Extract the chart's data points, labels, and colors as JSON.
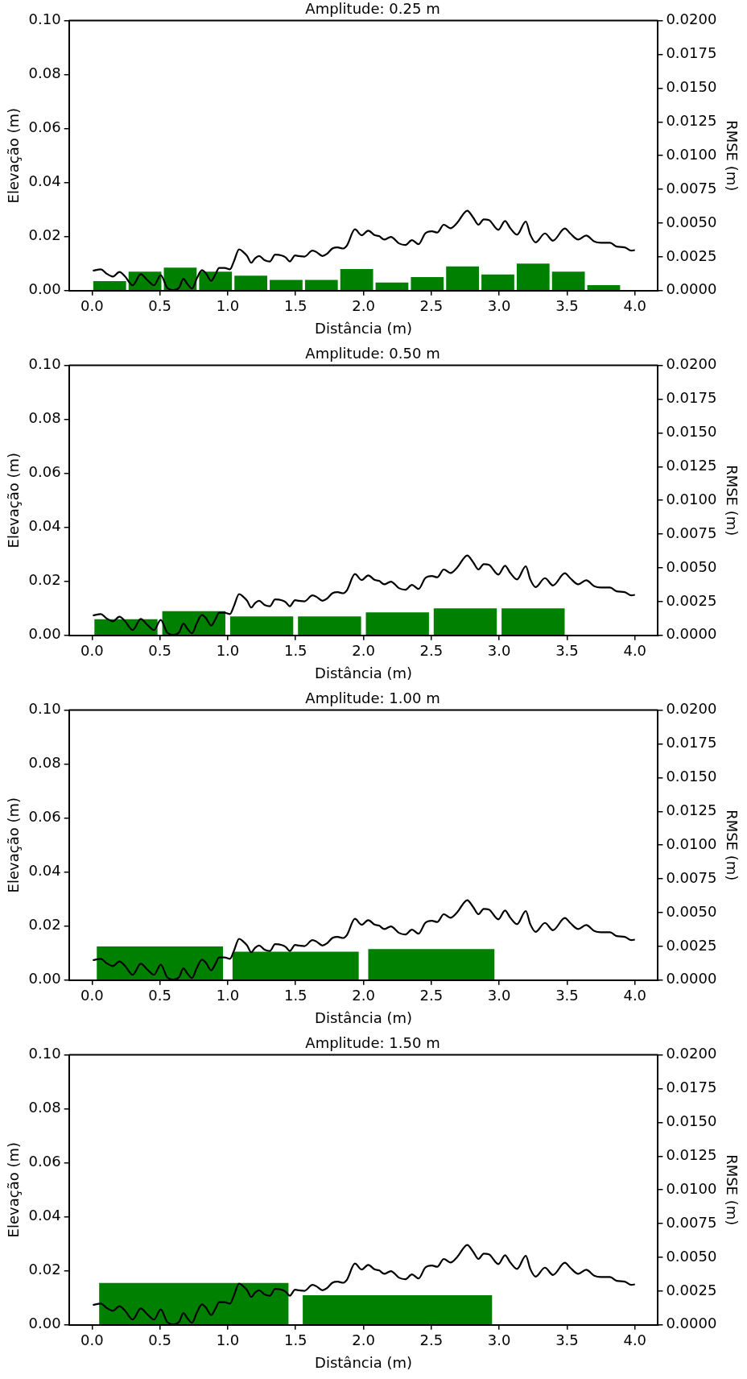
{
  "chart_data": [
    {
      "type": "line",
      "title": "Amplitude: 0.25 m",
      "xlabel": "Distância (m)",
      "ylabel": "Elevação (m)",
      "y2label": "RMSE (m)",
      "grid": false,
      "legend": false,
      "xlim": [
        -0.17,
        4.17
      ],
      "xticks": [
        {
          "value": 0,
          "label": "0.0"
        },
        {
          "value": 0.5,
          "label": "0.5"
        },
        {
          "value": 1,
          "label": "1.0"
        },
        {
          "value": 1.5,
          "label": "1.5"
        },
        {
          "value": 2,
          "label": "2.0"
        },
        {
          "value": 2.5,
          "label": "2.5"
        },
        {
          "value": 3,
          "label": "3.0"
        },
        {
          "value": 3.5,
          "label": "3.5"
        },
        {
          "value": 4,
          "label": "4.0"
        }
      ],
      "ylim": [
        0,
        0.1
      ],
      "yticks": [
        {
          "value": 0,
          "label": "0.00"
        },
        {
          "value": 0.02,
          "label": "0.02"
        },
        {
          "value": 0.04,
          "label": "0.04"
        },
        {
          "value": 0.06,
          "label": "0.06"
        },
        {
          "value": 0.08,
          "label": "0.08"
        },
        {
          "value": 0.1,
          "label": "0.10"
        }
      ],
      "y2lim": [
        0,
        0.02
      ],
      "y2ticks": [
        {
          "value": 0,
          "label": "0.0000"
        },
        {
          "value": 0.0025,
          "label": "0.0025"
        },
        {
          "value": 0.005,
          "label": "0.0050"
        },
        {
          "value": 0.0075,
          "label": "0.0075"
        },
        {
          "value": 0.01,
          "label": "0.0100"
        },
        {
          "value": 0.0125,
          "label": "0.0125"
        },
        {
          "value": 0.015,
          "label": "0.0150"
        },
        {
          "value": 0.0175,
          "label": "0.0175"
        },
        {
          "value": 0.02,
          "label": "0.0200"
        }
      ],
      "series": [
        {
          "type": "histogram",
          "axis": "y2",
          "color": "#008000",
          "bins": [
            0,
            0.26,
            0.52,
            0.78,
            1.04,
            1.3,
            1.56,
            1.82,
            2.08,
            2.34,
            2.6,
            2.86,
            3.12,
            3.38,
            3.64,
            3.9
          ],
          "values": [
            0.0007,
            0.0014,
            0.0017,
            0.0014,
            0.0011,
            0.0008,
            0.0008,
            0.0016,
            0.0006,
            0.001,
            0.0018,
            0.0012,
            0.002,
            0.0014,
            0.0004
          ]
        },
        {
          "color": "#000000",
          "x": [
            0.006,
            0.065,
            0.104,
            0.153,
            0.202,
            0.241,
            0.3,
            0.359,
            0.408,
            0.457,
            0.506,
            0.555,
            0.604,
            0.643,
            0.673,
            0.702,
            0.737,
            0.771,
            0.81,
            0.839,
            0.878,
            0.908,
            0.937,
            0.976,
            1.016,
            1.045,
            1.084,
            1.114,
            1.143,
            1.173,
            1.202,
            1.231,
            1.271,
            1.31,
            1.349,
            1.398,
            1.427,
            1.457,
            1.496,
            1.525,
            1.565,
            1.624,
            1.653,
            1.698,
            1.731,
            1.771,
            1.81,
            1.849,
            1.878,
            1.937,
            1.986,
            2.035,
            2.084,
            2.114,
            2.153,
            2.202,
            2.261,
            2.308,
            2.357,
            2.406,
            2.455,
            2.504,
            2.543,
            2.592,
            2.641,
            2.69,
            2.765,
            2.808,
            2.847,
            2.886,
            2.925,
            2.994,
            3.043,
            3.082,
            3.131,
            3.196,
            3.229,
            3.268,
            3.337,
            3.396,
            3.484,
            3.523,
            3.582,
            3.641,
            3.7,
            3.749,
            3.817,
            3.866,
            3.925,
            3.974,
            4.0
          ],
          "values": [
            0.0074,
            0.0079,
            0.0064,
            0.0052,
            0.0069,
            0.0054,
            0.002,
            0.0061,
            0.0039,
            0.002,
            0.0057,
            0.001,
            0.0002,
            0.0012,
            0.0044,
            0.0025,
            0.0008,
            0.0044,
            0.0076,
            0.0064,
            0.0036,
            0.0059,
            0.0084,
            0.0084,
            0.0079,
            0.0108,
            0.0153,
            0.0143,
            0.0128,
            0.0103,
            0.012,
            0.0128,
            0.0113,
            0.0108,
            0.0133,
            0.013,
            0.0123,
            0.0108,
            0.013,
            0.0128,
            0.0126,
            0.0148,
            0.0143,
            0.0128,
            0.0136,
            0.0156,
            0.016,
            0.0156,
            0.0167,
            0.0227,
            0.0205,
            0.0222,
            0.0205,
            0.0202,
            0.0189,
            0.0199,
            0.0175,
            0.0169,
            0.0187,
            0.0172,
            0.0212,
            0.022,
            0.0215,
            0.0244,
            0.0231,
            0.0251,
            0.0296,
            0.0271,
            0.0244,
            0.0264,
            0.0261,
            0.0225,
            0.0258,
            0.0231,
            0.0207,
            0.0256,
            0.0207,
            0.0179,
            0.0212,
            0.0185,
            0.023,
            0.0212,
            0.0189,
            0.0204,
            0.0182,
            0.0177,
            0.0177,
            0.0163,
            0.016,
            0.0148,
            0.015
          ]
        }
      ]
    },
    {
      "type": "line",
      "title": "Amplitude: 0.50 m",
      "xlabel": "Distância (m)",
      "ylabel": "Elevação (m)",
      "y2label": "RMSE (m)",
      "grid": false,
      "legend": false,
      "xlim": [
        -0.17,
        4.17
      ],
      "xticks": [
        {
          "value": 0,
          "label": "0.0"
        },
        {
          "value": 0.5,
          "label": "0.5"
        },
        {
          "value": 1,
          "label": "1.0"
        },
        {
          "value": 1.5,
          "label": "1.5"
        },
        {
          "value": 2,
          "label": "2.0"
        },
        {
          "value": 2.5,
          "label": "2.5"
        },
        {
          "value": 3,
          "label": "3.0"
        },
        {
          "value": 3.5,
          "label": "3.5"
        },
        {
          "value": 4,
          "label": "4.0"
        }
      ],
      "ylim": [
        0,
        0.1
      ],
      "yticks": [
        {
          "value": 0,
          "label": "0.00"
        },
        {
          "value": 0.02,
          "label": "0.02"
        },
        {
          "value": 0.04,
          "label": "0.04"
        },
        {
          "value": 0.06,
          "label": "0.06"
        },
        {
          "value": 0.08,
          "label": "0.08"
        },
        {
          "value": 0.1,
          "label": "0.10"
        }
      ],
      "y2lim": [
        0,
        0.02
      ],
      "y2ticks": [
        {
          "value": 0,
          "label": "0.0000"
        },
        {
          "value": 0.0025,
          "label": "0.0025"
        },
        {
          "value": 0.005,
          "label": "0.0050"
        },
        {
          "value": 0.0075,
          "label": "0.0075"
        },
        {
          "value": 0.01,
          "label": "0.0100"
        },
        {
          "value": 0.0125,
          "label": "0.0125"
        },
        {
          "value": 0.015,
          "label": "0.0150"
        },
        {
          "value": 0.0175,
          "label": "0.0175"
        },
        {
          "value": 0.02,
          "label": "0.0200"
        }
      ],
      "series": [
        {
          "type": "histogram",
          "axis": "y2",
          "color": "#008000",
          "bins": [
            0,
            0.5,
            1,
            1.5,
            2,
            2.5,
            3,
            3.5
          ],
          "values": [
            0.0012,
            0.0018,
            0.0014,
            0.0014,
            0.0017,
            0.002,
            0.002
          ]
        },
        {
          "color": "#000000",
          "x": [
            0.006,
            0.065,
            0.104,
            0.153,
            0.202,
            0.241,
            0.3,
            0.359,
            0.408,
            0.457,
            0.506,
            0.555,
            0.604,
            0.643,
            0.673,
            0.702,
            0.737,
            0.771,
            0.81,
            0.839,
            0.878,
            0.908,
            0.937,
            0.976,
            1.016,
            1.045,
            1.084,
            1.114,
            1.143,
            1.173,
            1.202,
            1.231,
            1.271,
            1.31,
            1.349,
            1.398,
            1.427,
            1.457,
            1.496,
            1.525,
            1.565,
            1.624,
            1.653,
            1.698,
            1.731,
            1.771,
            1.81,
            1.849,
            1.878,
            1.937,
            1.986,
            2.035,
            2.084,
            2.114,
            2.153,
            2.202,
            2.261,
            2.308,
            2.357,
            2.406,
            2.455,
            2.504,
            2.543,
            2.592,
            2.641,
            2.69,
            2.765,
            2.808,
            2.847,
            2.886,
            2.925,
            2.994,
            3.043,
            3.082,
            3.131,
            3.196,
            3.229,
            3.268,
            3.337,
            3.396,
            3.484,
            3.523,
            3.582,
            3.641,
            3.7,
            3.749,
            3.817,
            3.866,
            3.925,
            3.974,
            4.0
          ],
          "values": [
            0.0074,
            0.0079,
            0.0064,
            0.0052,
            0.0069,
            0.0054,
            0.002,
            0.0061,
            0.0039,
            0.002,
            0.0057,
            0.001,
            0.0002,
            0.0012,
            0.0044,
            0.0025,
            0.0008,
            0.0044,
            0.0076,
            0.0064,
            0.0036,
            0.0059,
            0.0084,
            0.0084,
            0.0079,
            0.0108,
            0.0153,
            0.0143,
            0.0128,
            0.0103,
            0.012,
            0.0128,
            0.0113,
            0.0108,
            0.0133,
            0.013,
            0.0123,
            0.0108,
            0.013,
            0.0128,
            0.0126,
            0.0148,
            0.0143,
            0.0128,
            0.0136,
            0.0156,
            0.016,
            0.0156,
            0.0167,
            0.0227,
            0.0205,
            0.0222,
            0.0205,
            0.0202,
            0.0189,
            0.0199,
            0.0175,
            0.0169,
            0.0187,
            0.0172,
            0.0212,
            0.022,
            0.0215,
            0.0244,
            0.0231,
            0.0251,
            0.0296,
            0.0271,
            0.0244,
            0.0264,
            0.0261,
            0.0225,
            0.0258,
            0.0231,
            0.0207,
            0.0256,
            0.0207,
            0.0179,
            0.0212,
            0.0185,
            0.023,
            0.0212,
            0.0189,
            0.0204,
            0.0182,
            0.0177,
            0.0177,
            0.0163,
            0.016,
            0.0148,
            0.015
          ]
        }
      ]
    },
    {
      "type": "line",
      "title": "Amplitude: 1.00 m",
      "xlabel": "Distância (m)",
      "ylabel": "Elevação (m)",
      "y2label": "RMSE (m)",
      "grid": false,
      "legend": false,
      "xlim": [
        -0.17,
        4.17
      ],
      "xticks": [
        {
          "value": 0,
          "label": "0.0"
        },
        {
          "value": 0.5,
          "label": "0.5"
        },
        {
          "value": 1,
          "label": "1.0"
        },
        {
          "value": 1.5,
          "label": "1.5"
        },
        {
          "value": 2,
          "label": "2.0"
        },
        {
          "value": 2.5,
          "label": "2.5"
        },
        {
          "value": 3,
          "label": "3.0"
        },
        {
          "value": 3.5,
          "label": "3.5"
        },
        {
          "value": 4,
          "label": "4.0"
        }
      ],
      "ylim": [
        0,
        0.1
      ],
      "yticks": [
        {
          "value": 0,
          "label": "0.00"
        },
        {
          "value": 0.02,
          "label": "0.02"
        },
        {
          "value": 0.04,
          "label": "0.04"
        },
        {
          "value": 0.06,
          "label": "0.06"
        },
        {
          "value": 0.08,
          "label": "0.08"
        },
        {
          "value": 0.1,
          "label": "0.10"
        }
      ],
      "y2lim": [
        0,
        0.02
      ],
      "y2ticks": [
        {
          "value": 0,
          "label": "0.0000"
        },
        {
          "value": 0.0025,
          "label": "0.0025"
        },
        {
          "value": 0.005,
          "label": "0.0050"
        },
        {
          "value": 0.0075,
          "label": "0.0075"
        },
        {
          "value": 0.01,
          "label": "0.0100"
        },
        {
          "value": 0.0125,
          "label": "0.0125"
        },
        {
          "value": 0.015,
          "label": "0.0150"
        },
        {
          "value": 0.0175,
          "label": "0.0175"
        },
        {
          "value": 0.02,
          "label": "0.0200"
        }
      ],
      "series": [
        {
          "type": "histogram",
          "axis": "y2",
          "color": "#008000",
          "bins": [
            0,
            1,
            2,
            3
          ],
          "values": [
            0.0025,
            0.0021,
            0.0023
          ]
        },
        {
          "color": "#000000",
          "x": [
            0.006,
            0.065,
            0.104,
            0.153,
            0.202,
            0.241,
            0.3,
            0.359,
            0.408,
            0.457,
            0.506,
            0.555,
            0.604,
            0.643,
            0.673,
            0.702,
            0.737,
            0.771,
            0.81,
            0.839,
            0.878,
            0.908,
            0.937,
            0.976,
            1.016,
            1.045,
            1.084,
            1.114,
            1.143,
            1.173,
            1.202,
            1.231,
            1.271,
            1.31,
            1.349,
            1.398,
            1.427,
            1.457,
            1.496,
            1.525,
            1.565,
            1.624,
            1.653,
            1.698,
            1.731,
            1.771,
            1.81,
            1.849,
            1.878,
            1.937,
            1.986,
            2.035,
            2.084,
            2.114,
            2.153,
            2.202,
            2.261,
            2.308,
            2.357,
            2.406,
            2.455,
            2.504,
            2.543,
            2.592,
            2.641,
            2.69,
            2.765,
            2.808,
            2.847,
            2.886,
            2.925,
            2.994,
            3.043,
            3.082,
            3.131,
            3.196,
            3.229,
            3.268,
            3.337,
            3.396,
            3.484,
            3.523,
            3.582,
            3.641,
            3.7,
            3.749,
            3.817,
            3.866,
            3.925,
            3.974,
            4.0
          ],
          "values": [
            0.0074,
            0.0079,
            0.0064,
            0.0052,
            0.0069,
            0.0054,
            0.002,
            0.0061,
            0.0039,
            0.002,
            0.0057,
            0.001,
            0.0002,
            0.0012,
            0.0044,
            0.0025,
            0.0008,
            0.0044,
            0.0076,
            0.0064,
            0.0036,
            0.0059,
            0.0084,
            0.0084,
            0.0079,
            0.0108,
            0.0153,
            0.0143,
            0.0128,
            0.0103,
            0.012,
            0.0128,
            0.0113,
            0.0108,
            0.0133,
            0.013,
            0.0123,
            0.0108,
            0.013,
            0.0128,
            0.0126,
            0.0148,
            0.0143,
            0.0128,
            0.0136,
            0.0156,
            0.016,
            0.0156,
            0.0167,
            0.0227,
            0.0205,
            0.0222,
            0.0205,
            0.0202,
            0.0189,
            0.0199,
            0.0175,
            0.0169,
            0.0187,
            0.0172,
            0.0212,
            0.022,
            0.0215,
            0.0244,
            0.0231,
            0.0251,
            0.0296,
            0.0271,
            0.0244,
            0.0264,
            0.0261,
            0.0225,
            0.0258,
            0.0231,
            0.0207,
            0.0256,
            0.0207,
            0.0179,
            0.0212,
            0.0185,
            0.023,
            0.0212,
            0.0189,
            0.0204,
            0.0182,
            0.0177,
            0.0177,
            0.0163,
            0.016,
            0.0148,
            0.015
          ]
        }
      ]
    },
    {
      "type": "line",
      "title": "Amplitude: 1.50 m",
      "xlabel": "Distância (m)",
      "ylabel": "Elevação (m)",
      "y2label": "RMSE (m)",
      "grid": false,
      "legend": false,
      "xlim": [
        -0.17,
        4.17
      ],
      "xticks": [
        {
          "value": 0,
          "label": "0.0"
        },
        {
          "value": 0.5,
          "label": "0.5"
        },
        {
          "value": 1,
          "label": "1.0"
        },
        {
          "value": 1.5,
          "label": "1.5"
        },
        {
          "value": 2,
          "label": "2.0"
        },
        {
          "value": 2.5,
          "label": "2.5"
        },
        {
          "value": 3,
          "label": "3.0"
        },
        {
          "value": 3.5,
          "label": "3.5"
        },
        {
          "value": 4,
          "label": "4.0"
        }
      ],
      "ylim": [
        0,
        0.1
      ],
      "yticks": [
        {
          "value": 0,
          "label": "0.00"
        },
        {
          "value": 0.02,
          "label": "0.02"
        },
        {
          "value": 0.04,
          "label": "0.04"
        },
        {
          "value": 0.06,
          "label": "0.06"
        },
        {
          "value": 0.08,
          "label": "0.08"
        },
        {
          "value": 0.1,
          "label": "0.10"
        }
      ],
      "y2lim": [
        0,
        0.02
      ],
      "y2ticks": [
        {
          "value": 0,
          "label": "0.0000"
        },
        {
          "value": 0.0025,
          "label": "0.0025"
        },
        {
          "value": 0.005,
          "label": "0.0050"
        },
        {
          "value": 0.0075,
          "label": "0.0075"
        },
        {
          "value": 0.01,
          "label": "0.0100"
        },
        {
          "value": 0.0125,
          "label": "0.0125"
        },
        {
          "value": 0.015,
          "label": "0.0150"
        },
        {
          "value": 0.0175,
          "label": "0.0175"
        },
        {
          "value": 0.02,
          "label": "0.0200"
        }
      ],
      "series": [
        {
          "type": "histogram",
          "axis": "y2",
          "color": "#008000",
          "bins": [
            0,
            1.5,
            3
          ],
          "values": [
            0.0031,
            0.0022
          ]
        },
        {
          "color": "#000000",
          "x": [
            0.006,
            0.065,
            0.104,
            0.153,
            0.202,
            0.241,
            0.3,
            0.359,
            0.408,
            0.457,
            0.506,
            0.555,
            0.604,
            0.643,
            0.673,
            0.702,
            0.737,
            0.771,
            0.81,
            0.839,
            0.878,
            0.908,
            0.937,
            0.976,
            1.016,
            1.045,
            1.084,
            1.114,
            1.143,
            1.173,
            1.202,
            1.231,
            1.271,
            1.31,
            1.349,
            1.398,
            1.427,
            1.457,
            1.496,
            1.525,
            1.565,
            1.624,
            1.653,
            1.698,
            1.731,
            1.771,
            1.81,
            1.849,
            1.878,
            1.937,
            1.986,
            2.035,
            2.084,
            2.114,
            2.153,
            2.202,
            2.261,
            2.308,
            2.357,
            2.406,
            2.455,
            2.504,
            2.543,
            2.592,
            2.641,
            2.69,
            2.765,
            2.808,
            2.847,
            2.886,
            2.925,
            2.994,
            3.043,
            3.082,
            3.131,
            3.196,
            3.229,
            3.268,
            3.337,
            3.396,
            3.484,
            3.523,
            3.582,
            3.641,
            3.7,
            3.749,
            3.817,
            3.866,
            3.925,
            3.974,
            4.0
          ],
          "values": [
            0.0074,
            0.0079,
            0.0064,
            0.0052,
            0.0069,
            0.0054,
            0.002,
            0.0061,
            0.0039,
            0.002,
            0.0057,
            0.001,
            0.0002,
            0.0012,
            0.0044,
            0.0025,
            0.0008,
            0.0044,
            0.0076,
            0.0064,
            0.0036,
            0.0059,
            0.0084,
            0.0084,
            0.0079,
            0.0108,
            0.0153,
            0.0143,
            0.0128,
            0.0103,
            0.012,
            0.0128,
            0.0113,
            0.0108,
            0.0133,
            0.013,
            0.0123,
            0.0108,
            0.013,
            0.0128,
            0.0126,
            0.0148,
            0.0143,
            0.0128,
            0.0136,
            0.0156,
            0.016,
            0.0156,
            0.0167,
            0.0227,
            0.0205,
            0.0222,
            0.0205,
            0.0202,
            0.0189,
            0.0199,
            0.0175,
            0.0169,
            0.0187,
            0.0172,
            0.0212,
            0.022,
            0.0215,
            0.0244,
            0.0231,
            0.0251,
            0.0296,
            0.0271,
            0.0244,
            0.0264,
            0.0261,
            0.0225,
            0.0258,
            0.0231,
            0.0207,
            0.0256,
            0.0207,
            0.0179,
            0.0212,
            0.0185,
            0.023,
            0.0212,
            0.0189,
            0.0204,
            0.0182,
            0.0177,
            0.0177,
            0.0163,
            0.016,
            0.0148,
            0.015
          ]
        }
      ]
    }
  ]
}
